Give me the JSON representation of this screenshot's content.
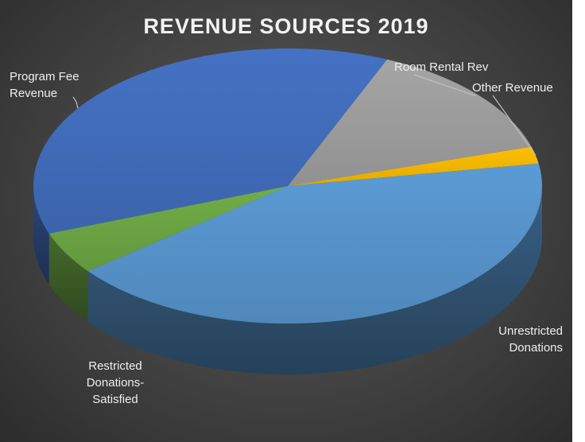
{
  "chart_data": {
    "type": "pie",
    "style": "3d",
    "title": "REVENUE SOURCES 2019",
    "slices": [
      {
        "label": "Room Rental Rev",
        "value": 14,
        "color": "#a5a5a5"
      },
      {
        "label": "Other Revenue",
        "value": 2,
        "color": "#ffc000"
      },
      {
        "label": "Unrestricted Donations",
        "value": 42,
        "color": "#5b9bd5"
      },
      {
        "label": "Restricted Donations-Satisfied",
        "value": 5,
        "color": "#70ad47"
      },
      {
        "label": "Program Fee Revenue",
        "value": 37,
        "color": "#4472c4"
      }
    ]
  },
  "labels": {
    "program_l1": "Program Fee",
    "program_l2": "Revenue",
    "room": "Room Rental Rev",
    "other": "Other Revenue",
    "unres_l1": "Unrestricted",
    "unres_l2": "Donations",
    "restr_l1": "Restricted",
    "restr_l2": "Donations-",
    "restr_l3": "Satisfied"
  }
}
